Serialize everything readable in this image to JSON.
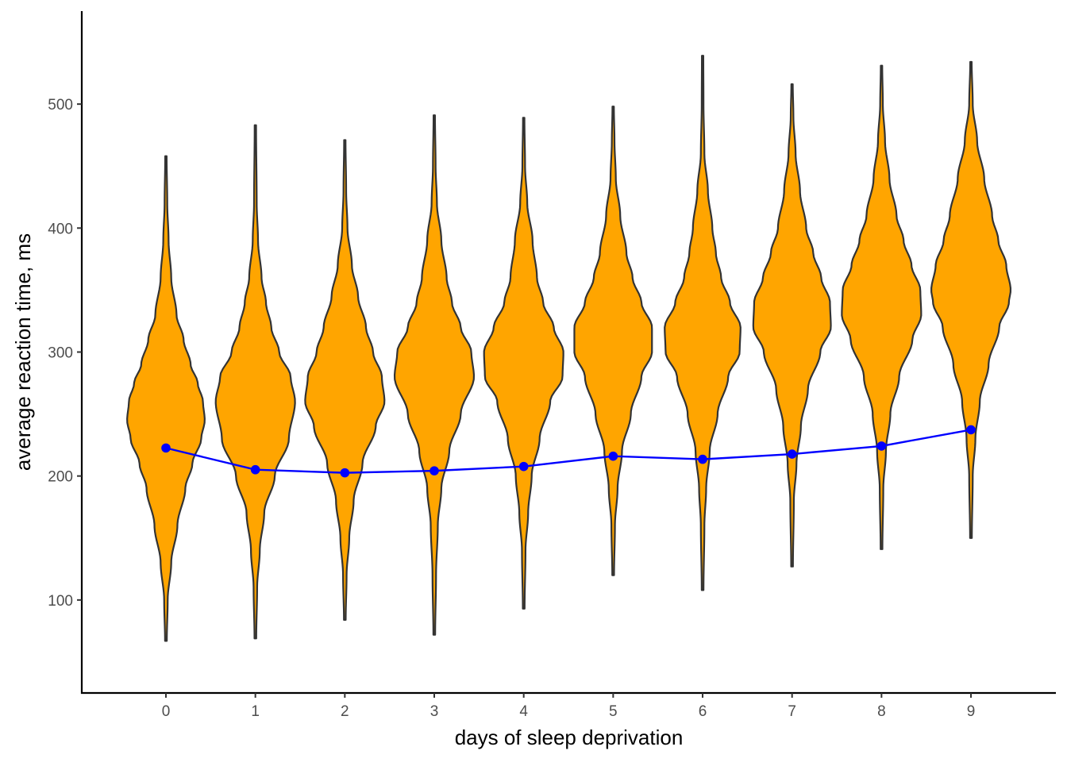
{
  "chart_data": {
    "type": "violin",
    "title": "",
    "xlabel": "days of sleep deprivation",
    "ylabel": "average reaction time, ms",
    "x_categories": [
      "0",
      "1",
      "2",
      "3",
      "4",
      "5",
      "6",
      "7",
      "8",
      "9"
    ],
    "y_ticks": [
      100,
      200,
      300,
      400,
      500
    ],
    "ylim": [
      25,
      575
    ],
    "grid": false,
    "legend": "none",
    "colors": {
      "violin_fill": "#FFA500",
      "violin_outline": "#333333",
      "line": "#0000FF",
      "axis": "#000000"
    },
    "violins": [
      {
        "day": 0,
        "min": 67,
        "max": 458,
        "profile": [
          [
            67,
            0.01
          ],
          [
            100,
            0.02
          ],
          [
            130,
            0.06
          ],
          [
            160,
            0.13
          ],
          [
            190,
            0.22
          ],
          [
            210,
            0.3
          ],
          [
            230,
            0.4
          ],
          [
            245,
            0.44
          ],
          [
            260,
            0.42
          ],
          [
            275,
            0.36
          ],
          [
            290,
            0.28
          ],
          [
            310,
            0.2
          ],
          [
            330,
            0.12
          ],
          [
            360,
            0.06
          ],
          [
            390,
            0.03
          ],
          [
            420,
            0.015
          ],
          [
            458,
            0.008
          ]
        ]
      },
      {
        "day": 1,
        "min": 69,
        "max": 483,
        "profile": [
          [
            69,
            0.01
          ],
          [
            110,
            0.02
          ],
          [
            140,
            0.05
          ],
          [
            170,
            0.1
          ],
          [
            200,
            0.22
          ],
          [
            230,
            0.38
          ],
          [
            260,
            0.45
          ],
          [
            280,
            0.4
          ],
          [
            300,
            0.27
          ],
          [
            320,
            0.18
          ],
          [
            340,
            0.12
          ],
          [
            360,
            0.07
          ],
          [
            390,
            0.03
          ],
          [
            420,
            0.015
          ],
          [
            483,
            0.008
          ]
        ]
      },
      {
        "day": 2,
        "min": 84,
        "max": 471,
        "profile": [
          [
            84,
            0.01
          ],
          [
            120,
            0.02
          ],
          [
            150,
            0.05
          ],
          [
            180,
            0.1
          ],
          [
            210,
            0.2
          ],
          [
            240,
            0.35
          ],
          [
            260,
            0.45
          ],
          [
            280,
            0.42
          ],
          [
            300,
            0.32
          ],
          [
            320,
            0.24
          ],
          [
            345,
            0.15
          ],
          [
            370,
            0.08
          ],
          [
            400,
            0.03
          ],
          [
            430,
            0.015
          ],
          [
            471,
            0.008
          ]
        ]
      },
      {
        "day": 3,
        "min": 72,
        "max": 491,
        "profile": [
          [
            72,
            0.01
          ],
          [
            120,
            0.02
          ],
          [
            160,
            0.04
          ],
          [
            190,
            0.08
          ],
          [
            220,
            0.17
          ],
          [
            250,
            0.3
          ],
          [
            280,
            0.45
          ],
          [
            300,
            0.42
          ],
          [
            320,
            0.3
          ],
          [
            340,
            0.2
          ],
          [
            360,
            0.14
          ],
          [
            390,
            0.08
          ],
          [
            420,
            0.03
          ],
          [
            450,
            0.015
          ],
          [
            491,
            0.008
          ]
        ]
      },
      {
        "day": 4,
        "min": 93,
        "max": 489,
        "profile": [
          [
            93,
            0.01
          ],
          [
            140,
            0.02
          ],
          [
            170,
            0.05
          ],
          [
            200,
            0.09
          ],
          [
            230,
            0.18
          ],
          [
            260,
            0.3
          ],
          [
            280,
            0.44
          ],
          [
            300,
            0.45
          ],
          [
            320,
            0.34
          ],
          [
            340,
            0.22
          ],
          [
            360,
            0.15
          ],
          [
            390,
            0.1
          ],
          [
            420,
            0.04
          ],
          [
            450,
            0.015
          ],
          [
            489,
            0.008
          ]
        ]
      },
      {
        "day": 5,
        "min": 120,
        "max": 498,
        "profile": [
          [
            120,
            0.01
          ],
          [
            160,
            0.02
          ],
          [
            190,
            0.05
          ],
          [
            220,
            0.1
          ],
          [
            250,
            0.2
          ],
          [
            280,
            0.32
          ],
          [
            300,
            0.44
          ],
          [
            320,
            0.44
          ],
          [
            340,
            0.32
          ],
          [
            360,
            0.22
          ],
          [
            380,
            0.15
          ],
          [
            410,
            0.08
          ],
          [
            440,
            0.03
          ],
          [
            470,
            0.015
          ],
          [
            498,
            0.008
          ]
        ]
      },
      {
        "day": 6,
        "min": 108,
        "max": 539,
        "profile": [
          [
            108,
            0.01
          ],
          [
            160,
            0.02
          ],
          [
            190,
            0.04
          ],
          [
            220,
            0.08
          ],
          [
            250,
            0.17
          ],
          [
            280,
            0.29
          ],
          [
            300,
            0.42
          ],
          [
            320,
            0.43
          ],
          [
            340,
            0.31
          ],
          [
            360,
            0.21
          ],
          [
            380,
            0.15
          ],
          [
            400,
            0.11
          ],
          [
            430,
            0.06
          ],
          [
            460,
            0.02
          ],
          [
            500,
            0.01
          ],
          [
            539,
            0.008
          ]
        ]
      },
      {
        "day": 7,
        "min": 127,
        "max": 516,
        "profile": [
          [
            127,
            0.01
          ],
          [
            180,
            0.02
          ],
          [
            210,
            0.05
          ],
          [
            240,
            0.1
          ],
          [
            270,
            0.18
          ],
          [
            300,
            0.32
          ],
          [
            320,
            0.44
          ],
          [
            340,
            0.43
          ],
          [
            360,
            0.33
          ],
          [
            380,
            0.24
          ],
          [
            400,
            0.16
          ],
          [
            430,
            0.09
          ],
          [
            460,
            0.04
          ],
          [
            490,
            0.015
          ],
          [
            516,
            0.008
          ]
        ]
      },
      {
        "day": 8,
        "min": 141,
        "max": 531,
        "profile": [
          [
            141,
            0.01
          ],
          [
            190,
            0.02
          ],
          [
            220,
            0.05
          ],
          [
            250,
            0.1
          ],
          [
            280,
            0.2
          ],
          [
            310,
            0.35
          ],
          [
            330,
            0.45
          ],
          [
            350,
            0.44
          ],
          [
            370,
            0.34
          ],
          [
            390,
            0.25
          ],
          [
            410,
            0.17
          ],
          [
            440,
            0.09
          ],
          [
            470,
            0.04
          ],
          [
            500,
            0.015
          ],
          [
            531,
            0.008
          ]
        ]
      },
      {
        "day": 9,
        "min": 150,
        "max": 534,
        "profile": [
          [
            150,
            0.01
          ],
          [
            200,
            0.02
          ],
          [
            230,
            0.05
          ],
          [
            260,
            0.1
          ],
          [
            290,
            0.2
          ],
          [
            320,
            0.32
          ],
          [
            340,
            0.43
          ],
          [
            350,
            0.45
          ],
          [
            370,
            0.4
          ],
          [
            390,
            0.31
          ],
          [
            410,
            0.24
          ],
          [
            440,
            0.15
          ],
          [
            470,
            0.07
          ],
          [
            500,
            0.02
          ],
          [
            534,
            0.008
          ]
        ]
      }
    ],
    "series": [
      {
        "type": "line",
        "x": [
          0,
          1,
          2,
          3,
          4,
          5,
          6,
          7,
          8,
          9
        ],
        "values": [
          222.6,
          205.1,
          202.6,
          204.2,
          207.7,
          216.0,
          213.5,
          217.7,
          224.2,
          237.3
        ]
      }
    ]
  }
}
